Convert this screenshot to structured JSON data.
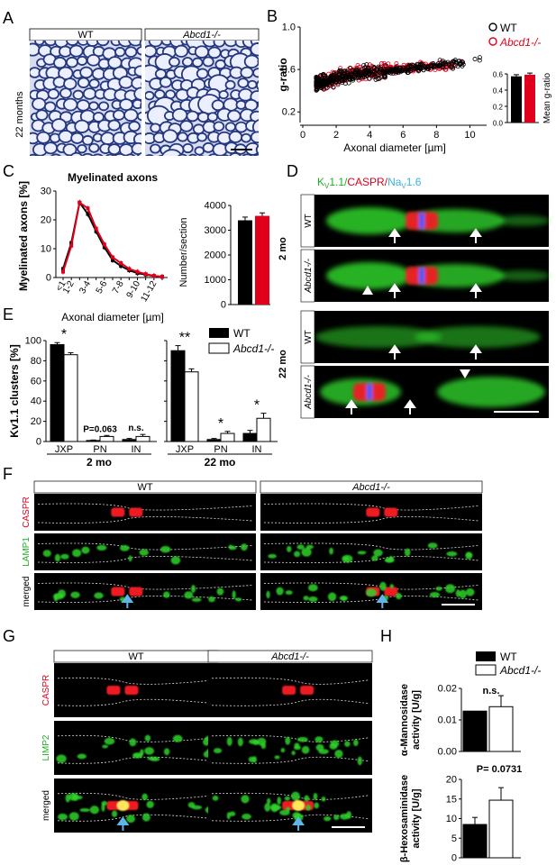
{
  "colors": {
    "wt": "#000000",
    "ko": "#e0001b",
    "green": "#2fd12a",
    "red": "#ee1b24",
    "blue": "#2a5bff",
    "cyan": "#3ab1e0",
    "histo_bg": "#d8dcef",
    "histo_cell": "#24377f"
  },
  "panel_letters": {
    "a": "A",
    "b": "B",
    "c": "C",
    "d": "D",
    "e": "E",
    "f": "F",
    "g": "G",
    "h": "H"
  },
  "panel_a": {
    "label_wt": "WT",
    "label_ko": "Abcd1-/-",
    "age": "22 months"
  },
  "legend_b": {
    "wt": "WT",
    "ko": "Abcd1-/-"
  },
  "legend_e": {
    "wt": "WT",
    "ko": "Abcd1-/-"
  },
  "legend_h": {
    "wt": "WT",
    "ko": "Abcd1-/-"
  },
  "panel_d": {
    "stain_k": "K",
    "stain_k_sub": "V",
    "stain_k_rest": "1.1/",
    "stain_caspr": "CASPR/",
    "stain_na": "Na",
    "stain_na_sub": "V",
    "stain_na_rest": "1.6",
    "age_2": "2 mo",
    "age_22": "22 mo",
    "row_wt": "WT",
    "row_ko": "Abcd1-/-"
  },
  "panel_f": {
    "col_wt": "WT",
    "col_ko": "Abcd1-/-",
    "row1": "CASPR",
    "row2": "LAMP1",
    "row3": "merged"
  },
  "panel_g": {
    "col_wt": "WT",
    "col_ko": "Abcd1-/-",
    "row1": "CASPR",
    "row2": "LIMP2",
    "row3": "merged"
  },
  "chart_data": [
    {
      "id": "B-scatter",
      "type": "scatter",
      "xlabel": "Axonal diameter [µm]",
      "ylabel": "g-ratio",
      "xlim": [
        0,
        11
      ],
      "ylim": [
        0.1,
        1.0
      ],
      "xticks": [
        0,
        2,
        4,
        6,
        8,
        10
      ],
      "yticks": [
        0.2,
        0.6,
        1.0
      ],
      "yticklabels": [
        "0.2",
        "0.6",
        "1.0"
      ],
      "series": [
        {
          "name": "WT",
          "cloud": {
            "trend": [
              [
                0.8,
                0.47
              ],
              [
                3,
                0.55
              ],
              [
                6,
                0.6
              ],
              [
                9,
                0.66
              ]
            ],
            "spread": 0.07,
            "n": 420
          }
        },
        {
          "name": "Abcd1-/-",
          "cloud": {
            "trend": [
              [
                0.8,
                0.47
              ],
              [
                3,
                0.56
              ],
              [
                6,
                0.61
              ],
              [
                10.5,
                0.66
              ]
            ],
            "spread": 0.07,
            "n": 380
          }
        }
      ]
    },
    {
      "id": "B-bar",
      "type": "bar",
      "ylabel": "Mean g-ratio",
      "ylim": [
        0,
        0.6
      ],
      "yticks": [
        0,
        0.2,
        0.4,
        0.6
      ],
      "yticklabels": [
        "0.0",
        "0.2",
        "0.4",
        "0.6"
      ],
      "categories": [
        "WT",
        "Abcd1-/-"
      ],
      "values": [
        0.57,
        0.59
      ],
      "errors": [
        0.02,
        0.02
      ]
    },
    {
      "id": "C-line",
      "type": "line",
      "title": "Myelinated axons",
      "xlabel": "Axonal diameter [µm]",
      "ylabel": "Myelinated axons [%]",
      "categories": [
        "<1",
        "1-2",
        "2-3",
        "3-4",
        "4-5",
        "5-6",
        "6-7",
        "7-8",
        "8-9",
        "9-10",
        "10-11",
        "11-12",
        ">12"
      ],
      "xticklabels": [
        "<1",
        "1-2",
        "",
        "3-4",
        "",
        "5-6",
        "",
        "7-8",
        "",
        "9-10",
        "",
        "11-12",
        ""
      ],
      "ylim": [
        0,
        30
      ],
      "yticks": [
        0,
        10,
        20,
        30
      ],
      "series": [
        {
          "name": "WT",
          "values": [
            3,
            12,
            26,
            22,
            16,
            10.5,
            6,
            4,
            2.5,
            1.5,
            1,
            0.5,
            0.2
          ]
        },
        {
          "name": "Abcd1-/-",
          "values": [
            2,
            11,
            26,
            24,
            17,
            11.5,
            7,
            5,
            3,
            2,
            1.2,
            0.6,
            0.3
          ]
        }
      ]
    },
    {
      "id": "C-bar",
      "type": "bar",
      "ylabel": "Number/section",
      "ylim": [
        0,
        4000
      ],
      "yticks": [
        0,
        1000,
        2000,
        3000,
        4000
      ],
      "categories": [
        "WT",
        "Abcd1-/-"
      ],
      "values": [
        3400,
        3580
      ],
      "errors": [
        130,
        120
      ]
    },
    {
      "id": "E-bar",
      "type": "bar",
      "ylabel": "Kv1.1 clusters [%]",
      "ylim": [
        0,
        100
      ],
      "yticks": [
        0,
        20,
        40,
        60,
        80,
        100
      ],
      "groups": [
        {
          "label": "2 mo",
          "categories": [
            "JXP",
            "PN",
            "IN"
          ],
          "wt": [
            96,
            1,
            2
          ],
          "ko": [
            86,
            5,
            5
          ],
          "wt_err": [
            2,
            0.5,
            1
          ],
          "ko_err": [
            2,
            1,
            2
          ],
          "annotations": [
            "*",
            "P=0.063",
            "n.s."
          ]
        },
        {
          "label": "22 mo",
          "categories": [
            "JXP",
            "PN",
            "IN"
          ],
          "wt": [
            90,
            2,
            8
          ],
          "ko": [
            69,
            8,
            23
          ],
          "wt_err": [
            5,
            1,
            3
          ],
          "ko_err": [
            3,
            2,
            5
          ],
          "annotations": [
            "**",
            "*",
            "*"
          ]
        }
      ]
    },
    {
      "id": "H-mannosidase",
      "type": "bar",
      "ylabel": "α-Mannosidase activity [U/g]",
      "ylim": [
        0,
        0.02
      ],
      "yticks": [
        0,
        0.01,
        0.02
      ],
      "yticklabels": [
        "0.00",
        "0.01",
        "0.02"
      ],
      "categories": [
        "WT",
        "Abcd1-/-"
      ],
      "values": [
        0.0128,
        0.0142
      ],
      "errors": [
        0,
        0.0035
      ],
      "annotation": "n.s."
    },
    {
      "id": "H-hexosaminidase",
      "type": "bar",
      "ylabel": "β-Hexosaminidase activity [U/g]",
      "ylim": [
        0,
        20
      ],
      "yticks": [
        0,
        5,
        10,
        15,
        20
      ],
      "categories": [
        "WT",
        "Abcd1-/-"
      ],
      "values": [
        8.5,
        14.7
      ],
      "errors": [
        1.8,
        3.2
      ],
      "annotation": "P= 0.0731"
    }
  ]
}
